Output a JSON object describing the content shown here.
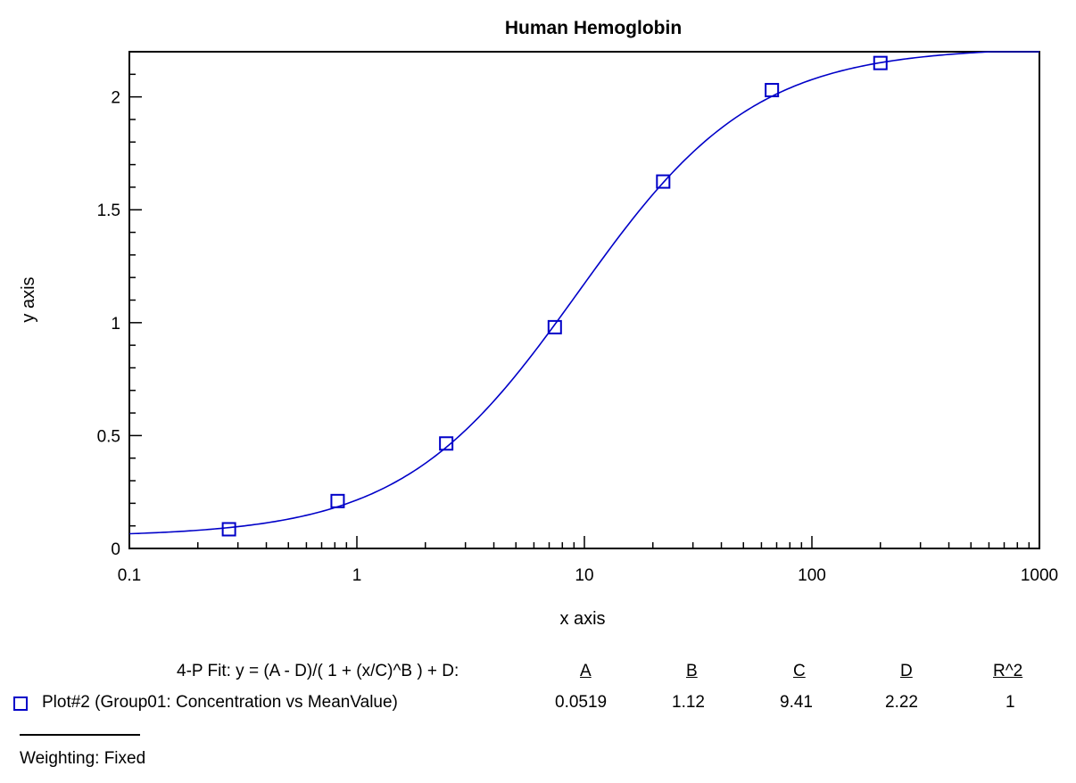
{
  "chart_data": {
    "type": "scatter",
    "title": "Human Hemoglobin",
    "xlabel": "x axis",
    "ylabel": "y axis",
    "xscale": "log",
    "xlim": [
      0.1,
      1000
    ],
    "ylim": [
      0,
      2.2
    ],
    "x_ticks": [
      0.1,
      1,
      10,
      100,
      1000
    ],
    "x_tick_labels": [
      "0.1",
      "1",
      "10",
      "100",
      "1000"
    ],
    "y_ticks": [
      0,
      0.5,
      1,
      1.5,
      2
    ],
    "y_tick_labels": [
      "0",
      "0.5",
      "1",
      "1.5",
      "2"
    ],
    "grid": false,
    "colors": {
      "series": "#0000c8",
      "axis": "#000000"
    },
    "series": [
      {
        "marker": "square-open",
        "x": [
          0.274,
          0.823,
          2.47,
          7.41,
          22.2,
          66.7,
          200
        ],
        "y": [
          0.085,
          0.21,
          0.465,
          0.98,
          1.625,
          2.03,
          2.15
        ]
      }
    ],
    "fit": {
      "model": "4-P",
      "A": 0.0519,
      "B": 1.12,
      "C": 9.41,
      "D": 2.22
    }
  },
  "fit_table": {
    "equation_label": "4-P Fit:  y = (A - D)/( 1 + (x/C)^B ) + D:",
    "headers": [
      "A",
      "B",
      "C",
      "D",
      "R^2"
    ],
    "row_label": "Plot#2 (Group01: Concentration vs MeanValue)",
    "values": [
      "0.0519",
      "1.12",
      "9.41",
      "2.22",
      "1"
    ],
    "weighting": "Weighting: Fixed"
  }
}
